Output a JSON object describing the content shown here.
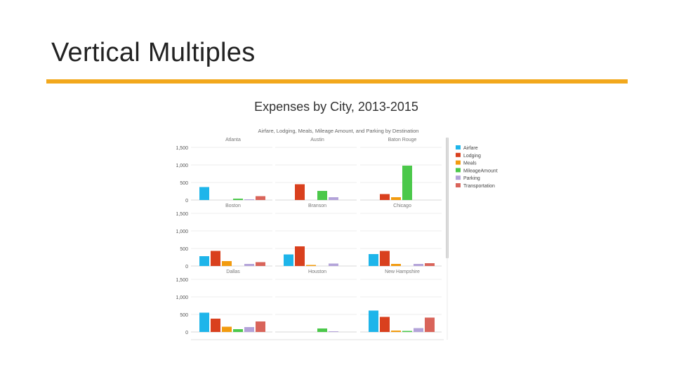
{
  "slide": {
    "title": "Vertical Multiples",
    "accent_color": "#F2A81D"
  },
  "chart_data": {
    "type": "bar",
    "layout": "small-multiples",
    "title": "Expenses by City, 2013-2015",
    "subtitle": "Airfare, Lodging, Meals, Mileage Amount, and Parking by Destination",
    "ylim": [
      0,
      1500
    ],
    "yticks": [
      "1,500",
      "1,000",
      "500",
      "0"
    ],
    "legend_position": "right",
    "series": [
      {
        "name": "Airfare",
        "color": "#1EB5EA"
      },
      {
        "name": "Lodging",
        "color": "#D9401E"
      },
      {
        "name": "Meals",
        "color": "#F29B0F"
      },
      {
        "name": "MileageAmount",
        "color": "#4BC84A"
      },
      {
        "name": "Parking",
        "color": "#B3A3D9"
      },
      {
        "name": "Transportation",
        "color": "#D9645A"
      }
    ],
    "panels": [
      {
        "city": "Atlanta",
        "values": [
          370,
          0,
          0,
          40,
          20,
          110
        ]
      },
      {
        "city": "Austin",
        "values": [
          0,
          450,
          0,
          260,
          80,
          0
        ]
      },
      {
        "city": "Baton Rouge",
        "values": [
          0,
          170,
          80,
          980,
          0,
          0
        ]
      },
      {
        "city": "Boston",
        "values": [
          280,
          430,
          140,
          0,
          60,
          110
        ]
      },
      {
        "city": "Branson",
        "values": [
          330,
          560,
          30,
          0,
          70,
          0
        ]
      },
      {
        "city": "Chicago",
        "values": [
          340,
          430,
          60,
          0,
          60,
          80
        ]
      },
      {
        "city": "Dallas",
        "values": [
          550,
          380,
          150,
          80,
          140,
          300
        ]
      },
      {
        "city": "Houston",
        "values": [
          0,
          0,
          0,
          100,
          20,
          0
        ]
      },
      {
        "city": "New Hampshire",
        "values": [
          610,
          430,
          40,
          30,
          110,
          410
        ]
      }
    ]
  }
}
